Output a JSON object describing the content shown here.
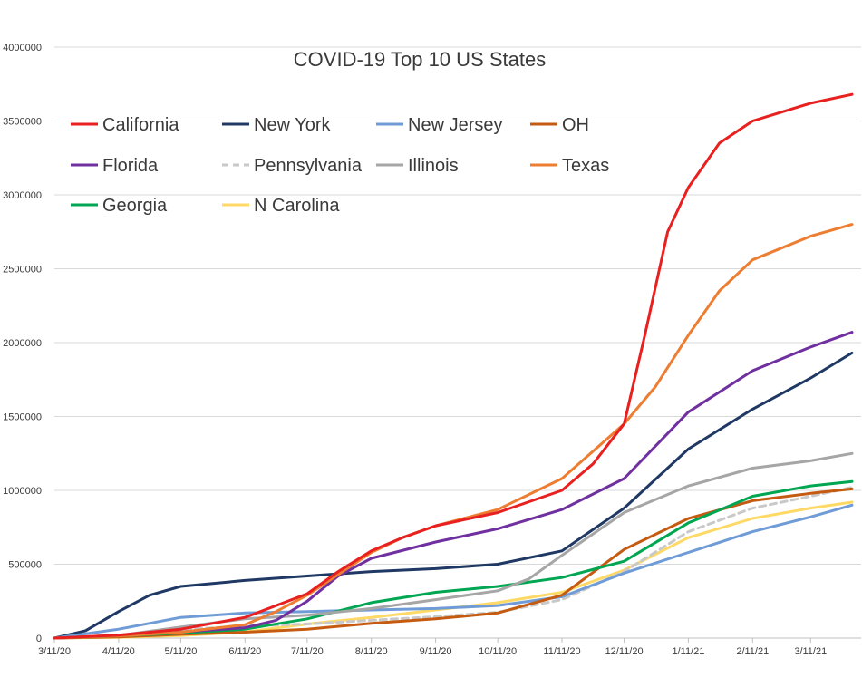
{
  "chart_data": {
    "type": "line",
    "title": "COVID-19 Top 10 US States",
    "xlabel": "",
    "ylabel": "",
    "x_ticks": [
      "3/11/20",
      "4/11/20",
      "5/11/20",
      "6/11/20",
      "7/11/20",
      "8/11/20",
      "9/11/20",
      "10/11/20",
      "11/11/20",
      "12/11/20",
      "1/11/21",
      "2/11/21",
      "3/11/21"
    ],
    "x_range": [
      "3/11/20",
      "3/31/21"
    ],
    "ylim": [
      0,
      4000000
    ],
    "y_ticks": [
      "0",
      "500000",
      "1000000",
      "1500000",
      "2000000",
      "2500000",
      "3000000",
      "3500000",
      "4000000"
    ],
    "grid": "horizontal",
    "legend": "top",
    "series": [
      {
        "name": "California",
        "color": "#e8201f",
        "dashed": false,
        "points": [
          [
            "3/11/20",
            0
          ],
          [
            "4/11/20",
            20000
          ],
          [
            "5/11/20",
            60000
          ],
          [
            "6/11/20",
            140000
          ],
          [
            "7/11/20",
            300000
          ],
          [
            "7/26/20",
            450000
          ],
          [
            "8/11/20",
            590000
          ],
          [
            "8/26/20",
            680000
          ],
          [
            "9/11/20",
            760000
          ],
          [
            "10/11/20",
            850000
          ],
          [
            "11/11/20",
            1000000
          ],
          [
            "11/26/20",
            1180000
          ],
          [
            "12/11/20",
            1450000
          ],
          [
            "12/21/20",
            2050000
          ],
          [
            "1/1/21",
            2750000
          ],
          [
            "1/11/21",
            3050000
          ],
          [
            "1/26/21",
            3350000
          ],
          [
            "2/11/21",
            3500000
          ],
          [
            "3/11/21",
            3620000
          ],
          [
            "3/31/21",
            3680000
          ]
        ]
      },
      {
        "name": "New York",
        "color": "#1f3864",
        "dashed": false,
        "points": [
          [
            "3/11/20",
            0
          ],
          [
            "3/26/20",
            50000
          ],
          [
            "4/11/20",
            180000
          ],
          [
            "4/26/20",
            290000
          ],
          [
            "5/11/20",
            350000
          ],
          [
            "6/11/20",
            390000
          ],
          [
            "7/11/20",
            420000
          ],
          [
            "8/11/20",
            450000
          ],
          [
            "9/11/20",
            470000
          ],
          [
            "10/11/20",
            500000
          ],
          [
            "11/11/20",
            590000
          ],
          [
            "12/11/20",
            880000
          ],
          [
            "1/11/21",
            1280000
          ],
          [
            "2/11/21",
            1550000
          ],
          [
            "3/11/21",
            1760000
          ],
          [
            "3/31/21",
            1930000
          ]
        ]
      },
      {
        "name": "New Jersey",
        "color": "#6f9bd6",
        "dashed": false,
        "points": [
          [
            "3/11/20",
            0
          ],
          [
            "4/11/20",
            60000
          ],
          [
            "5/11/20",
            140000
          ],
          [
            "6/11/20",
            170000
          ],
          [
            "7/11/20",
            180000
          ],
          [
            "8/11/20",
            190000
          ],
          [
            "9/11/20",
            200000
          ],
          [
            "10/11/20",
            220000
          ],
          [
            "11/11/20",
            280000
          ],
          [
            "12/11/20",
            440000
          ],
          [
            "1/11/21",
            580000
          ],
          [
            "2/11/21",
            720000
          ],
          [
            "3/11/21",
            820000
          ],
          [
            "3/31/21",
            900000
          ]
        ]
      },
      {
        "name": "OH",
        "color": "#c55a11",
        "dashed": false,
        "points": [
          [
            "3/11/20",
            0
          ],
          [
            "4/11/20",
            8000
          ],
          [
            "5/11/20",
            25000
          ],
          [
            "6/11/20",
            40000
          ],
          [
            "7/11/20",
            60000
          ],
          [
            "8/11/20",
            100000
          ],
          [
            "9/11/20",
            130000
          ],
          [
            "10/11/20",
            170000
          ],
          [
            "11/11/20",
            290000
          ],
          [
            "12/11/20",
            600000
          ],
          [
            "1/11/21",
            810000
          ],
          [
            "2/11/21",
            930000
          ],
          [
            "3/11/21",
            980000
          ],
          [
            "3/31/21",
            1010000
          ]
        ]
      },
      {
        "name": "Florida",
        "color": "#7030a0",
        "dashed": false,
        "points": [
          [
            "3/11/20",
            0
          ],
          [
            "4/11/20",
            18000
          ],
          [
            "5/11/20",
            42000
          ],
          [
            "6/11/20",
            70000
          ],
          [
            "6/26/20",
            120000
          ],
          [
            "7/11/20",
            250000
          ],
          [
            "7/26/20",
            420000
          ],
          [
            "8/11/20",
            540000
          ],
          [
            "9/11/20",
            650000
          ],
          [
            "10/11/20",
            740000
          ],
          [
            "11/11/20",
            870000
          ],
          [
            "12/11/20",
            1080000
          ],
          [
            "1/11/21",
            1530000
          ],
          [
            "2/11/21",
            1810000
          ],
          [
            "3/11/21",
            1970000
          ],
          [
            "3/31/21",
            2070000
          ]
        ]
      },
      {
        "name": "Pennsylvania",
        "color": "#c9c9c9",
        "dashed": true,
        "points": [
          [
            "3/11/20",
            0
          ],
          [
            "4/11/20",
            20000
          ],
          [
            "5/11/20",
            58000
          ],
          [
            "6/11/20",
            80000
          ],
          [
            "7/11/20",
            95000
          ],
          [
            "8/11/20",
            120000
          ],
          [
            "9/11/20",
            145000
          ],
          [
            "10/11/20",
            175000
          ],
          [
            "11/11/20",
            260000
          ],
          [
            "12/11/20",
            450000
          ],
          [
            "1/11/21",
            720000
          ],
          [
            "2/11/21",
            880000
          ],
          [
            "3/11/21",
            960000
          ],
          [
            "3/31/21",
            1020000
          ]
        ]
      },
      {
        "name": "Illinois",
        "color": "#a6a6a6",
        "dashed": false,
        "points": [
          [
            "3/11/20",
            0
          ],
          [
            "4/11/20",
            18000
          ],
          [
            "5/11/20",
            75000
          ],
          [
            "6/11/20",
            130000
          ],
          [
            "7/11/20",
            155000
          ],
          [
            "8/11/20",
            200000
          ],
          [
            "9/11/20",
            260000
          ],
          [
            "10/11/20",
            320000
          ],
          [
            "10/26/20",
            400000
          ],
          [
            "11/11/20",
            560000
          ],
          [
            "12/11/20",
            850000
          ],
          [
            "1/11/21",
            1030000
          ],
          [
            "2/11/21",
            1150000
          ],
          [
            "3/11/21",
            1200000
          ],
          [
            "3/31/21",
            1250000
          ]
        ]
      },
      {
        "name": "Texas",
        "color": "#ed7d31",
        "dashed": false,
        "points": [
          [
            "3/11/20",
            0
          ],
          [
            "4/11/20",
            14000
          ],
          [
            "5/11/20",
            40000
          ],
          [
            "6/11/20",
            90000
          ],
          [
            "6/26/20",
            180000
          ],
          [
            "7/11/20",
            290000
          ],
          [
            "7/26/20",
            430000
          ],
          [
            "8/11/20",
            580000
          ],
          [
            "8/26/20",
            680000
          ],
          [
            "9/11/20",
            760000
          ],
          [
            "10/11/20",
            870000
          ],
          [
            "11/11/20",
            1080000
          ],
          [
            "12/11/20",
            1450000
          ],
          [
            "12/26/20",
            1700000
          ],
          [
            "1/11/21",
            2050000
          ],
          [
            "1/26/21",
            2350000
          ],
          [
            "2/11/21",
            2560000
          ],
          [
            "3/11/21",
            2720000
          ],
          [
            "3/31/21",
            2800000
          ]
        ]
      },
      {
        "name": "Georgia",
        "color": "#00a651",
        "dashed": false,
        "points": [
          [
            "3/11/20",
            0
          ],
          [
            "4/11/20",
            15000
          ],
          [
            "5/11/20",
            34000
          ],
          [
            "6/11/20",
            60000
          ],
          [
            "7/11/20",
            130000
          ],
          [
            "8/11/20",
            240000
          ],
          [
            "9/11/20",
            310000
          ],
          [
            "10/11/20",
            350000
          ],
          [
            "11/11/20",
            410000
          ],
          [
            "12/11/20",
            520000
          ],
          [
            "1/11/21",
            780000
          ],
          [
            "2/11/21",
            960000
          ],
          [
            "3/11/21",
            1030000
          ],
          [
            "3/31/21",
            1060000
          ]
        ]
      },
      {
        "name": "N Carolina",
        "color": "#ffd966",
        "dashed": false,
        "points": [
          [
            "3/11/20",
            0
          ],
          [
            "4/11/20",
            5000
          ],
          [
            "5/11/20",
            17000
          ],
          [
            "6/11/20",
            42000
          ],
          [
            "7/11/20",
            95000
          ],
          [
            "8/11/20",
            140000
          ],
          [
            "9/11/20",
            190000
          ],
          [
            "10/11/20",
            240000
          ],
          [
            "11/11/20",
            310000
          ],
          [
            "12/11/20",
            460000
          ],
          [
            "1/11/21",
            680000
          ],
          [
            "2/11/21",
            810000
          ],
          [
            "3/11/21",
            880000
          ],
          [
            "3/31/21",
            920000
          ]
        ]
      }
    ]
  }
}
